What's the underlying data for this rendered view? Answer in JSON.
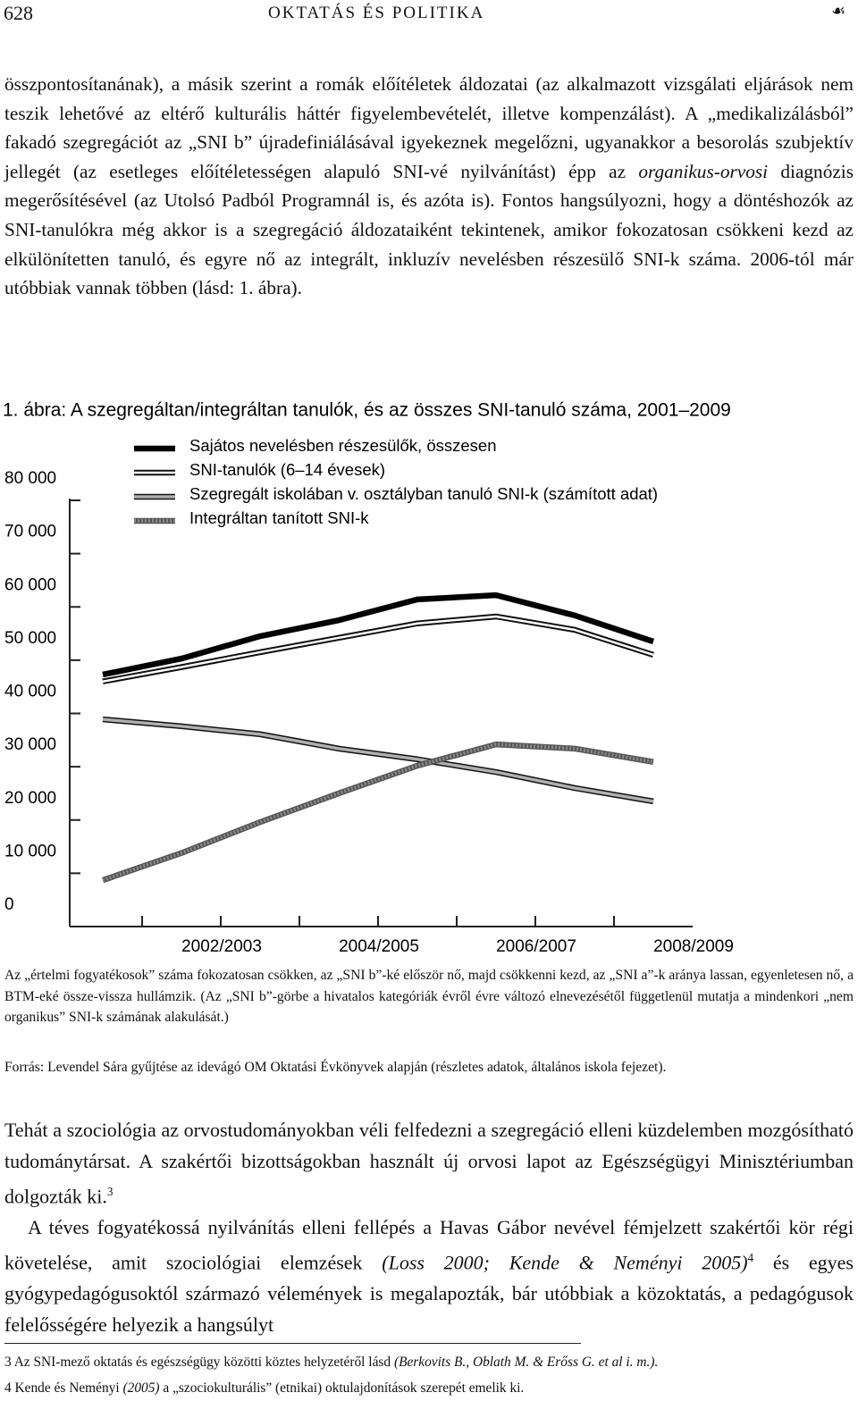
{
  "header": {
    "page_number": "628",
    "running_head": "OKTATÁS ÉS POLITIKA"
  },
  "paragraphs": [
    [
      {
        "t": "összpontosítanának), a másik szerint a romák előítéletek áldozatai (az alkalmazott vizsgálati eljárások nem teszik lehetővé az eltérő kulturális háttér figyelembevételét, illetve kompenzálást). A „medikalizálásból” fakadó szegregációt az „SNI b” újradefiniálásával igyekeznek megelőzni, ugyanakkor a besorolás szubjektív jellegét (az esetleges előítéletességen alapuló SNI-vé nyilvánítást) épp az "
      },
      {
        "i": "organikus-orvosi"
      },
      {
        "t": " diagnózis megerősítésével (az Utolsó Padból Programnál is, és azóta is). Fontos hangsúlyozni, hogy a döntéshozók az SNI-tanulókra még akkor is a szegregáció áldozataiként tekintenek, amikor fokozatosan csökkeni kezd az elkülönítetten tanuló, és egyre nő az integrált, inkluzív nevelésben részesülő SNI-k száma. 2006-tól már utóbbiak vannak többen (lásd: 1. ábra)."
      }
    ]
  ],
  "chart_data": {
    "type": "line",
    "title": "1. ábra: A szegregáltan/integráltan tanulók, és az összes SNI-tanuló száma, 2001–2009",
    "categories": [
      null,
      "2002/2003",
      null,
      "2004/2005",
      null,
      "2006/2007",
      null,
      "2008/2009"
    ],
    "ylim": [
      0,
      80000
    ],
    "yticks": [
      0,
      {
        "value": 10000,
        "label": "10 000"
      },
      {
        "value": 20000,
        "label": "20 000"
      },
      {
        "value": 30000,
        "label": "30 000"
      },
      {
        "value": 40000,
        "label": "40 000"
      },
      {
        "value": 50000,
        "label": "50 000"
      },
      {
        "value": 60000,
        "label": "60 000"
      },
      {
        "value": 70000,
        "label": "70 000"
      },
      {
        "value": 80000,
        "label": "80 000"
      }
    ],
    "series": [
      {
        "name": "Sajátos nevelésben részesülők, összesen",
        "color": "#000000",
        "values": [
          47300,
          50300,
          54500,
          57500,
          61400,
          62200,
          58400,
          53500
        ]
      },
      {
        "name": "SNI-tanulók (6–14 évesek)",
        "color": "#ffffff",
        "values": [
          46000,
          48700,
          51500,
          54200,
          56900,
          58200,
          55700,
          51000
        ]
      },
      {
        "name": "Szegregált iskolában v. osztályban tanuló SNI-k (számított adat)",
        "color": "#b0b0b0",
        "values": [
          38900,
          37600,
          36100,
          33400,
          31400,
          29000,
          26000,
          23500
        ]
      },
      {
        "name": "Integráltan tanított SNI-k",
        "color": "#8a8a8a",
        "values": [
          8700,
          13800,
          19600,
          25000,
          30200,
          34200,
          33400,
          30900
        ]
      }
    ]
  },
  "figure_note": "Az „értelmi fogyatékosok” száma fokozatosan csökken, az „SNI b”-ké először nő, majd csökkenni kezd, az „SNI a”-k aránya lassan, egyenletesen nő, a BTM-eké össze-vissza hullámzik. (Az „SNI b”-görbe a hivatalos kategóriák évről évre változó elnevezésétől függetlenül mutatja a mindenkori „nem organikus” SNI-k számának alakulását.)",
  "figure_source": "Forrás: Levendel Sára gyűjtése az idevágó OM Oktatási Évkönyvek alapján (részletes adatok, általános iskola fejezet).",
  "paragraphs_after": [
    [
      {
        "t": "Tehát a szociológia az orvostudományokban véli felfedezni a szegregáció elleni küzdelemben mozgósítható tudománytársat. A szakértői bizottságokban használt új orvosi lapot az Egészségügyi Minisztériumban dolgozták ki."
      },
      {
        "sup": "3"
      }
    ],
    [
      {
        "t": "A téves fogyatékossá nyilvánítás elleni fellépés a Havas Gábor nevével fémjelzett szakértői kör régi követelése, amit szociológiai elemzések "
      },
      {
        "i": "(Loss 2000; Kende & Neményi 2005)"
      },
      {
        "sup": "4"
      },
      {
        "t": " és egyes gyógypedagógusoktól származó vélemények is megalapozták, bár utóbbiak a közoktatás, a pedagógusok felelősségére helyezik a hangsúlyt"
      }
    ]
  ],
  "footnotes": [
    [
      {
        "t": "3 Az SNI-mező oktatás és egészségügy közötti köztes helyzetéről lásd "
      },
      {
        "i": "(Berkovits B., Oblath M. & Erőss G. et al i. m.)."
      }
    ],
    [
      {
        "t": "4 Kende és Neményi "
      },
      {
        "i": "(2005)"
      },
      {
        "t": " a „szociokulturális” (etnikai) oktulajdonítások szerepét emelik ki."
      }
    ]
  ]
}
